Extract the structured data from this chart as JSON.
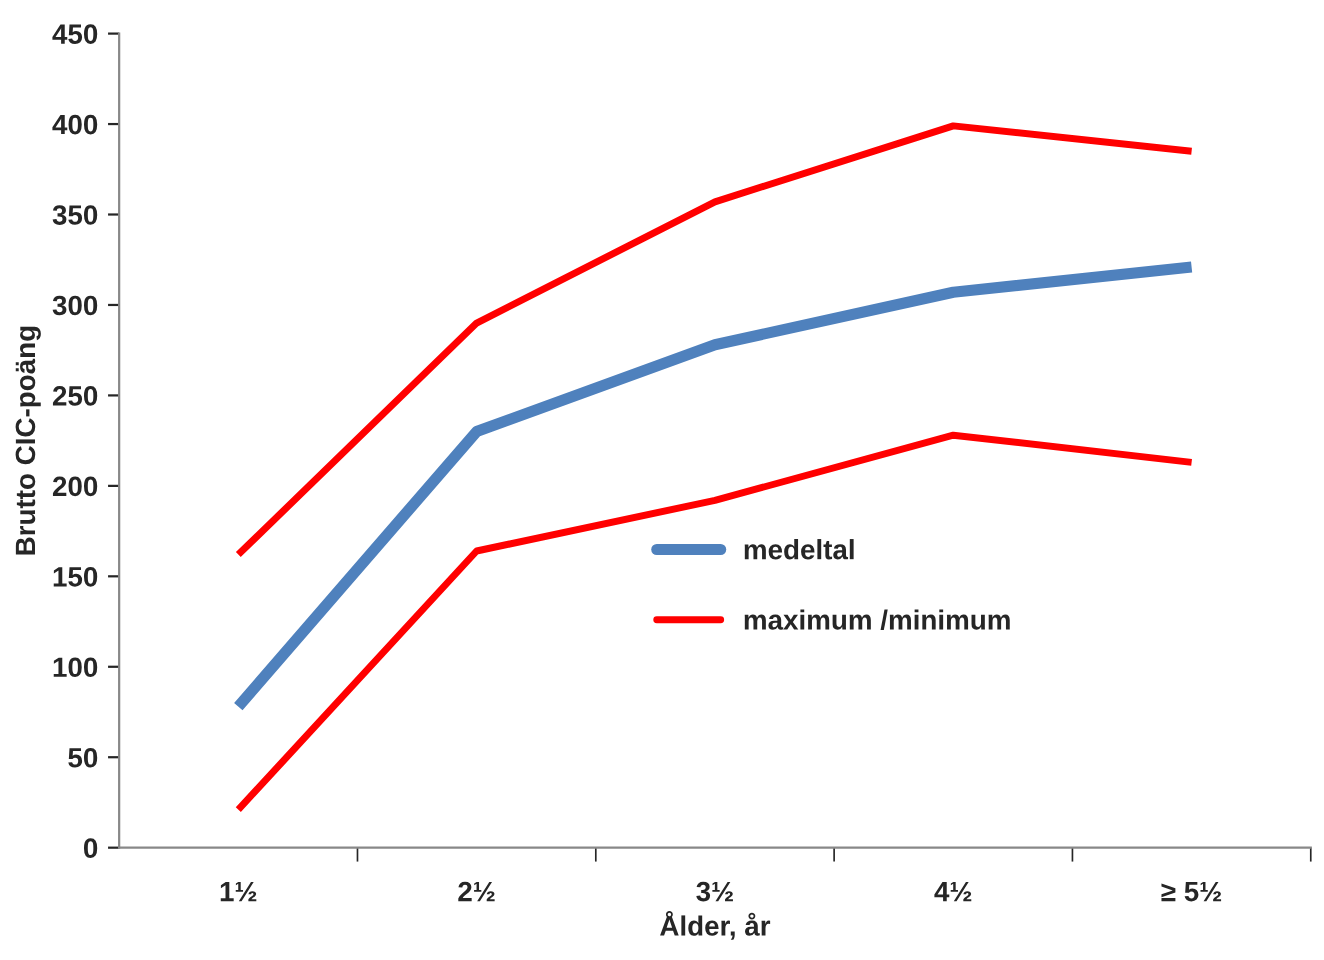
{
  "chart_data": {
    "type": "line",
    "xlabel": "Ålder, år",
    "ylabel": "Brutto CIC-poäng",
    "categories": [
      "1½",
      "2½",
      "3½",
      "4½",
      "≥ 5½"
    ],
    "series": [
      {
        "name": "medeltal",
        "color": "#4f81bd",
        "values": [
          78,
          230,
          278,
          307,
          321
        ]
      },
      {
        "name": "maximum /minimum",
        "color": "#ff0000",
        "values": [
          162,
          290,
          357,
          399,
          385
        ]
      },
      {
        "color": "#ff0000",
        "values": [
          21,
          164,
          192,
          228,
          213
        ]
      }
    ],
    "ylim": [
      0,
      450
    ],
    "yticks": [
      0,
      50,
      100,
      150,
      200,
      250,
      300,
      350,
      400,
      450
    ],
    "grid": false,
    "legend": "center",
    "marker": "none",
    "line_style": "solid"
  }
}
